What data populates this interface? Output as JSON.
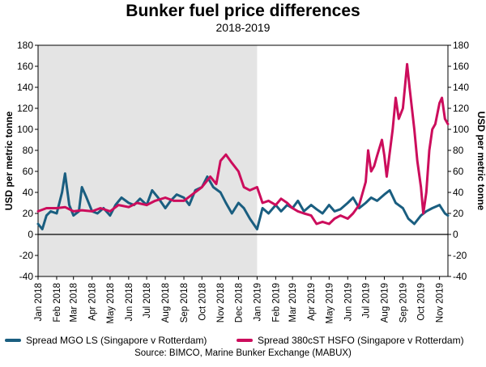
{
  "chart_data": {
    "type": "line",
    "title": "Bunker fuel price differences",
    "subtitle": "2018-2019",
    "ylabel_left": "USD per metric tonne",
    "ylabel_right": "USD per metric tonne",
    "ylim": [
      -40,
      180
    ],
    "y_ticks": [
      -40,
      -20,
      0,
      20,
      40,
      60,
      80,
      100,
      120,
      140,
      160,
      180
    ],
    "x_range": [
      "2018-01-01",
      "2019-11-15"
    ],
    "x_tick_labels": [
      "Jan 2018",
      "Feb 2018",
      "Mar 2018",
      "Apr 2018",
      "May 2018",
      "Jun 2018",
      "Jul 2018",
      "Aug 2018",
      "Sep 2018",
      "Oct 2018",
      "Nov 2018",
      "Dec 2018",
      "Jan 2019",
      "Feb 2019",
      "Mar 2019",
      "Apr 2019",
      "May 2019",
      "Jun 2019",
      "Jul 2019",
      "Aug 2019",
      "Sep 2019",
      "Oct 2019",
      "Nov 2019"
    ],
    "shaded_period": [
      "2018-01-01",
      "2019-01-01"
    ],
    "grid": false,
    "legend_position": "bottom",
    "series": [
      {
        "name": "Spread MGO LS (Singapore v Rotterdam)",
        "color": "#1a5e80",
        "points": [
          [
            "2018-01-01",
            10
          ],
          [
            "2018-01-08",
            5
          ],
          [
            "2018-01-15",
            18
          ],
          [
            "2018-01-22",
            22
          ],
          [
            "2018-02-01",
            20
          ],
          [
            "2018-02-10",
            40
          ],
          [
            "2018-02-15",
            58
          ],
          [
            "2018-02-22",
            28
          ],
          [
            "2018-03-01",
            18
          ],
          [
            "2018-03-10",
            22
          ],
          [
            "2018-03-15",
            45
          ],
          [
            "2018-03-22",
            36
          ],
          [
            "2018-04-01",
            22
          ],
          [
            "2018-04-10",
            20
          ],
          [
            "2018-04-20",
            25
          ],
          [
            "2018-05-01",
            18
          ],
          [
            "2018-05-10",
            28
          ],
          [
            "2018-05-20",
            35
          ],
          [
            "2018-06-01",
            30
          ],
          [
            "2018-06-10",
            28
          ],
          [
            "2018-06-20",
            34
          ],
          [
            "2018-07-01",
            28
          ],
          [
            "2018-07-10",
            42
          ],
          [
            "2018-07-20",
            35
          ],
          [
            "2018-08-01",
            25
          ],
          [
            "2018-08-10",
            32
          ],
          [
            "2018-08-20",
            38
          ],
          [
            "2018-09-01",
            35
          ],
          [
            "2018-09-10",
            28
          ],
          [
            "2018-09-20",
            42
          ],
          [
            "2018-10-01",
            45
          ],
          [
            "2018-10-10",
            55
          ],
          [
            "2018-10-20",
            45
          ],
          [
            "2018-11-01",
            40
          ],
          [
            "2018-11-10",
            30
          ],
          [
            "2018-11-20",
            20
          ],
          [
            "2018-12-01",
            30
          ],
          [
            "2018-12-10",
            25
          ],
          [
            "2018-12-20",
            15
          ],
          [
            "2019-01-01",
            5
          ],
          [
            "2019-01-10",
            25
          ],
          [
            "2019-01-20",
            20
          ],
          [
            "2019-02-01",
            28
          ],
          [
            "2019-02-10",
            22
          ],
          [
            "2019-02-20",
            28
          ],
          [
            "2019-03-01",
            25
          ],
          [
            "2019-03-10",
            32
          ],
          [
            "2019-03-20",
            22
          ],
          [
            "2019-04-01",
            28
          ],
          [
            "2019-04-10",
            24
          ],
          [
            "2019-04-20",
            20
          ],
          [
            "2019-05-01",
            28
          ],
          [
            "2019-05-10",
            22
          ],
          [
            "2019-05-20",
            24
          ],
          [
            "2019-06-01",
            30
          ],
          [
            "2019-06-10",
            35
          ],
          [
            "2019-06-20",
            25
          ],
          [
            "2019-07-01",
            30
          ],
          [
            "2019-07-10",
            35
          ],
          [
            "2019-07-20",
            32
          ],
          [
            "2019-08-01",
            38
          ],
          [
            "2019-08-10",
            42
          ],
          [
            "2019-08-20",
            30
          ],
          [
            "2019-09-01",
            25
          ],
          [
            "2019-09-10",
            15
          ],
          [
            "2019-09-20",
            10
          ],
          [
            "2019-10-01",
            18
          ],
          [
            "2019-10-10",
            22
          ],
          [
            "2019-10-20",
            25
          ],
          [
            "2019-11-01",
            28
          ],
          [
            "2019-11-10",
            20
          ],
          [
            "2019-11-15",
            18
          ]
        ]
      },
      {
        "name": "Spread 380cST HSFO (Singapore v Rotterdam)",
        "color": "#cc0d5c",
        "points": [
          [
            "2018-01-01",
            22
          ],
          [
            "2018-01-15",
            25
          ],
          [
            "2018-02-01",
            25
          ],
          [
            "2018-02-15",
            26
          ],
          [
            "2018-03-01",
            22
          ],
          [
            "2018-03-15",
            23
          ],
          [
            "2018-04-01",
            22
          ],
          [
            "2018-04-15",
            25
          ],
          [
            "2018-05-01",
            22
          ],
          [
            "2018-05-15",
            28
          ],
          [
            "2018-06-01",
            26
          ],
          [
            "2018-06-15",
            30
          ],
          [
            "2018-07-01",
            28
          ],
          [
            "2018-07-15",
            32
          ],
          [
            "2018-08-01",
            35
          ],
          [
            "2018-08-15",
            32
          ],
          [
            "2018-09-01",
            32
          ],
          [
            "2018-09-15",
            38
          ],
          [
            "2018-10-01",
            45
          ],
          [
            "2018-10-15",
            55
          ],
          [
            "2018-10-25",
            48
          ],
          [
            "2018-11-01",
            70
          ],
          [
            "2018-11-10",
            76
          ],
          [
            "2018-11-20",
            68
          ],
          [
            "2018-12-01",
            60
          ],
          [
            "2018-12-10",
            45
          ],
          [
            "2018-12-20",
            42
          ],
          [
            "2019-01-01",
            45
          ],
          [
            "2019-01-10",
            30
          ],
          [
            "2019-01-20",
            32
          ],
          [
            "2019-02-01",
            28
          ],
          [
            "2019-02-10",
            34
          ],
          [
            "2019-02-20",
            30
          ],
          [
            "2019-03-01",
            25
          ],
          [
            "2019-03-10",
            22
          ],
          [
            "2019-03-20",
            20
          ],
          [
            "2019-04-01",
            18
          ],
          [
            "2019-04-10",
            10
          ],
          [
            "2019-04-20",
            12
          ],
          [
            "2019-05-01",
            10
          ],
          [
            "2019-05-10",
            15
          ],
          [
            "2019-05-20",
            18
          ],
          [
            "2019-06-01",
            15
          ],
          [
            "2019-06-10",
            20
          ],
          [
            "2019-06-20",
            28
          ],
          [
            "2019-07-01",
            50
          ],
          [
            "2019-07-05",
            80
          ],
          [
            "2019-07-10",
            60
          ],
          [
            "2019-07-15",
            65
          ],
          [
            "2019-07-20",
            75
          ],
          [
            "2019-07-28",
            90
          ],
          [
            "2019-08-01",
            75
          ],
          [
            "2019-08-05",
            55
          ],
          [
            "2019-08-15",
            100
          ],
          [
            "2019-08-20",
            130
          ],
          [
            "2019-08-25",
            110
          ],
          [
            "2019-09-01",
            120
          ],
          [
            "2019-09-08",
            162
          ],
          [
            "2019-09-12",
            140
          ],
          [
            "2019-09-20",
            100
          ],
          [
            "2019-09-25",
            70
          ],
          [
            "2019-10-01",
            45
          ],
          [
            "2019-10-05",
            20
          ],
          [
            "2019-10-10",
            40
          ],
          [
            "2019-10-15",
            80
          ],
          [
            "2019-10-20",
            100
          ],
          [
            "2019-10-25",
            105
          ],
          [
            "2019-11-01",
            125
          ],
          [
            "2019-11-05",
            130
          ],
          [
            "2019-11-10",
            110
          ],
          [
            "2019-11-15",
            105
          ]
        ]
      }
    ],
    "source": "Source: BIMCO, Marine Bunker Exchange (MABUX)"
  }
}
